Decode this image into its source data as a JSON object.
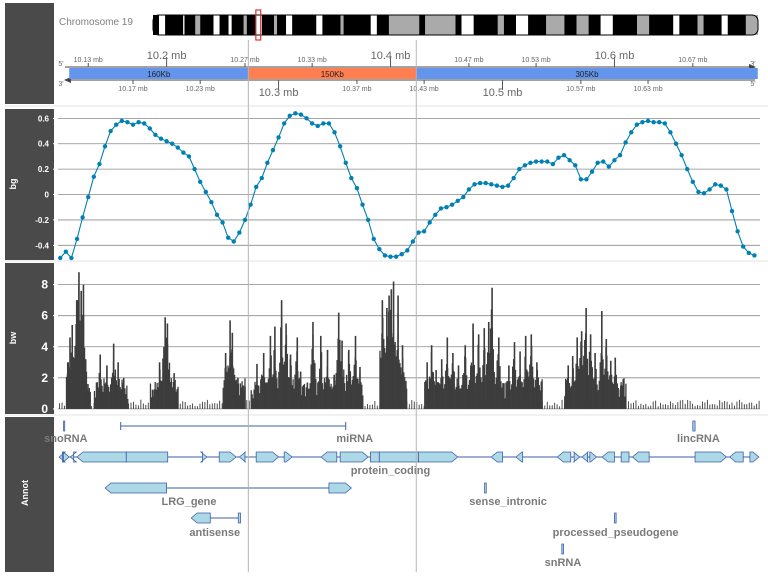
{
  "chromosome": {
    "label": "Chromosome 19",
    "bands": [
      [
        0.0,
        0.01,
        "#000000"
      ],
      [
        0.01,
        0.02,
        "#ffffff"
      ],
      [
        0.02,
        0.05,
        "#000000"
      ],
      [
        0.05,
        0.052,
        "#ffffff"
      ],
      [
        0.052,
        0.07,
        "#000000"
      ],
      [
        0.07,
        0.078,
        "#aaaaaa"
      ],
      [
        0.078,
        0.1,
        "#000000"
      ],
      [
        0.1,
        0.11,
        "#ffffff"
      ],
      [
        0.11,
        0.125,
        "#000000"
      ],
      [
        0.125,
        0.13,
        "#ffffff"
      ],
      [
        0.13,
        0.15,
        "#000000"
      ],
      [
        0.15,
        0.155,
        "#aaaaaa"
      ],
      [
        0.155,
        0.17,
        "#000000"
      ],
      [
        0.17,
        0.18,
        "#ffffff"
      ],
      [
        0.18,
        0.2,
        "#000000"
      ],
      [
        0.2,
        0.205,
        "#aaaaaa"
      ],
      [
        0.205,
        0.22,
        "#000000"
      ],
      [
        0.22,
        0.23,
        "#ffffff"
      ],
      [
        0.23,
        0.27,
        "#000000"
      ],
      [
        0.27,
        0.28,
        "#ffffff"
      ],
      [
        0.28,
        0.31,
        "#000000"
      ],
      [
        0.31,
        0.315,
        "#aaaaaa"
      ],
      [
        0.315,
        0.36,
        "#000000"
      ],
      [
        0.36,
        0.37,
        "#ffffff"
      ],
      [
        0.37,
        0.39,
        "#000000"
      ],
      [
        0.39,
        0.44,
        "#aaaaaa"
      ],
      [
        0.44,
        0.45,
        "#000000"
      ],
      [
        0.45,
        0.5,
        "#aaaaaa"
      ],
      [
        0.5,
        0.51,
        "#000000"
      ],
      [
        0.51,
        0.53,
        "#ffffff"
      ],
      [
        0.53,
        0.57,
        "#000000"
      ],
      [
        0.57,
        0.58,
        "#aaaaaa"
      ],
      [
        0.58,
        0.6,
        "#000000"
      ],
      [
        0.6,
        0.62,
        "#ffffff"
      ],
      [
        0.62,
        0.65,
        "#000000"
      ],
      [
        0.65,
        0.68,
        "#aaaaaa"
      ],
      [
        0.68,
        0.7,
        "#000000"
      ],
      [
        0.7,
        0.72,
        "#aaaaaa"
      ],
      [
        0.72,
        0.74,
        "#000000"
      ],
      [
        0.74,
        0.76,
        "#ffffff"
      ],
      [
        0.76,
        0.8,
        "#000000"
      ],
      [
        0.8,
        0.82,
        "#aaaaaa"
      ],
      [
        0.82,
        0.86,
        "#000000"
      ],
      [
        0.86,
        0.87,
        "#ffffff"
      ],
      [
        0.87,
        0.9,
        "#000000"
      ],
      [
        0.9,
        0.91,
        "#aaaaaa"
      ],
      [
        0.91,
        0.94,
        "#000000"
      ],
      [
        0.94,
        0.95,
        "#ffffff"
      ],
      [
        0.95,
        0.98,
        "#000000"
      ],
      [
        0.98,
        1.0,
        "#aaaaaa"
      ]
    ],
    "highlight": [
      0.17,
      0.178
    ]
  },
  "axis_track": {
    "range_mb": [
      10.103,
      10.73
    ],
    "major_top": [
      {
        "v": 10.2,
        "label": "10.2 mb"
      },
      {
        "v": 10.4,
        "label": "10.4 mb"
      },
      {
        "v": 10.6,
        "label": "10.6 mb"
      }
    ],
    "minor_top": [
      {
        "v": 10.13,
        "label": "10.13 mb"
      },
      {
        "v": 10.27,
        "label": "10.27 mb"
      },
      {
        "v": 10.33,
        "label": "10.33 mb"
      },
      {
        "v": 10.47,
        "label": "10.47 mb"
      },
      {
        "v": 10.53,
        "label": "10.53 mb"
      },
      {
        "v": 10.67,
        "label": "10.67 mb"
      }
    ],
    "major_bottom": [
      {
        "v": 10.3,
        "label": "10.3 mb"
      },
      {
        "v": 10.5,
        "label": "10.5 mb"
      }
    ],
    "minor_bottom": [
      {
        "v": 10.17,
        "label": "10.17 mb"
      },
      {
        "v": 10.23,
        "label": "10.23 mb"
      },
      {
        "v": 10.37,
        "label": "10.37 mb"
      },
      {
        "v": 10.43,
        "label": "10.43 mb"
      },
      {
        "v": 10.57,
        "label": "10.57 mb"
      },
      {
        "v": 10.63,
        "label": "10.63 mb"
      }
    ],
    "strand_top_left": "5'",
    "strand_top_right": "3'",
    "strand_bottom_left": "3'",
    "strand_bottom_right": "5'",
    "ranges": [
      {
        "start": 10.113,
        "end": 10.273,
        "label": "160Kb",
        "color": "#6495ed"
      },
      {
        "start": 10.273,
        "end": 10.423,
        "label": "150Kb",
        "color": "#ff7f50"
      },
      {
        "start": 10.423,
        "end": 10.728,
        "label": "305Kb",
        "color": "#6495ed"
      }
    ]
  },
  "highlight_lines_mb": [
    10.273,
    10.423
  ],
  "tracks": [
    {
      "name": "bg",
      "label": "bg"
    },
    {
      "name": "bw",
      "label": "bw"
    },
    {
      "name": "annot",
      "label": "Annot"
    }
  ],
  "chart_data": [
    {
      "type": "line",
      "track": "bg",
      "xlabel": "",
      "ylabel": "bg",
      "xlim": [
        10.103,
        10.73
      ],
      "ylim": [
        -0.5,
        0.65
      ],
      "yticks": [
        -0.4,
        -0.2,
        0,
        0.2,
        0.4,
        0.6
      ],
      "ytick_labels": [
        "-0.4",
        "-0.2",
        "0",
        "0.2",
        "0.4",
        "0.6"
      ],
      "color": "#0080b3",
      "x": [
        10.105,
        10.11,
        10.115,
        10.12,
        10.125,
        10.13,
        10.135,
        10.14,
        10.145,
        10.15,
        10.155,
        10.16,
        10.165,
        10.17,
        10.175,
        10.18,
        10.185,
        10.19,
        10.195,
        10.2,
        10.205,
        10.21,
        10.215,
        10.22,
        10.225,
        10.23,
        10.235,
        10.24,
        10.245,
        10.25,
        10.255,
        10.26,
        10.265,
        10.27,
        10.275,
        10.28,
        10.285,
        10.29,
        10.295,
        10.3,
        10.305,
        10.31,
        10.315,
        10.32,
        10.325,
        10.33,
        10.335,
        10.34,
        10.345,
        10.35,
        10.355,
        10.36,
        10.365,
        10.37,
        10.375,
        10.38,
        10.385,
        10.39,
        10.395,
        10.4,
        10.405,
        10.41,
        10.415,
        10.42,
        10.425,
        10.43,
        10.435,
        10.44,
        10.445,
        10.45,
        10.455,
        10.46,
        10.465,
        10.47,
        10.475,
        10.48,
        10.485,
        10.49,
        10.495,
        10.5,
        10.505,
        10.51,
        10.515,
        10.52,
        10.525,
        10.53,
        10.535,
        10.54,
        10.545,
        10.55,
        10.555,
        10.56,
        10.565,
        10.57,
        10.575,
        10.58,
        10.585,
        10.59,
        10.595,
        10.6,
        10.605,
        10.61,
        10.615,
        10.62,
        10.625,
        10.63,
        10.635,
        10.64,
        10.645,
        10.65,
        10.655,
        10.66,
        10.665,
        10.67,
        10.675,
        10.68,
        10.685,
        10.69,
        10.695,
        10.7,
        10.705,
        10.71,
        10.715,
        10.72,
        10.725
      ],
      "y": [
        -0.5,
        -0.45,
        -0.5,
        -0.35,
        -0.18,
        -0.02,
        0.14,
        0.24,
        0.38,
        0.5,
        0.55,
        0.58,
        0.57,
        0.55,
        0.57,
        0.56,
        0.52,
        0.47,
        0.44,
        0.42,
        0.4,
        0.37,
        0.33,
        0.3,
        0.2,
        0.1,
        0.02,
        -0.06,
        -0.16,
        -0.22,
        -0.34,
        -0.37,
        -0.3,
        -0.2,
        -0.08,
        0.06,
        0.13,
        0.25,
        0.35,
        0.45,
        0.56,
        0.62,
        0.64,
        0.63,
        0.6,
        0.56,
        0.54,
        0.56,
        0.56,
        0.49,
        0.38,
        0.25,
        0.13,
        0.05,
        -0.08,
        -0.2,
        -0.35,
        -0.43,
        -0.48,
        -0.49,
        -0.49,
        -0.47,
        -0.44,
        -0.37,
        -0.3,
        -0.29,
        -0.22,
        -0.16,
        -0.11,
        -0.1,
        -0.08,
        -0.05,
        -0.02,
        0.04,
        0.08,
        0.09,
        0.09,
        0.08,
        0.07,
        0.06,
        0.07,
        0.13,
        0.2,
        0.23,
        0.25,
        0.26,
        0.26,
        0.26,
        0.24,
        0.29,
        0.31,
        0.27,
        0.23,
        0.12,
        0.12,
        0.18,
        0.25,
        0.26,
        0.22,
        0.27,
        0.31,
        0.41,
        0.49,
        0.55,
        0.57,
        0.58,
        0.57,
        0.57,
        0.56,
        0.49,
        0.4,
        0.31,
        0.2,
        0.1,
        0.02,
        0.01,
        0.04,
        0.08,
        0.07,
        0.04,
        -0.13,
        -0.29,
        -0.41,
        -0.46,
        -0.48
      ]
    },
    {
      "type": "bar",
      "track": "bw",
      "xlabel": "",
      "ylabel": "bw",
      "xlim": [
        10.103,
        10.73
      ],
      "ylim": [
        -0.2,
        9.2
      ],
      "yticks": [
        0,
        2,
        4,
        6,
        8
      ],
      "ytick_labels": [
        "0",
        "2",
        "4",
        "6",
        "8"
      ],
      "color": "#3d3d3d",
      "clusters": [
        {
          "start": 10.11,
          "end": 10.132,
          "peaks": [
            [
              10.111,
              3.0
            ],
            [
              10.113,
              4.6
            ],
            [
              10.115,
              5.4
            ],
            [
              10.117,
              2.8
            ],
            [
              10.119,
              7.0
            ],
            [
              10.121,
              8.8
            ],
            [
              10.123,
              7.6
            ],
            [
              10.125,
              8.0
            ],
            [
              10.127,
              3.2
            ],
            [
              10.129,
              1.6
            ]
          ]
        },
        {
          "start": 10.135,
          "end": 10.165,
          "peaks": [
            [
              10.14,
              3.5
            ],
            [
              10.146,
              2.8
            ],
            [
              10.152,
              4.2
            ],
            [
              10.156,
              3.0
            ],
            [
              10.161,
              2.0
            ]
          ]
        },
        {
          "start": 10.185,
          "end": 10.21,
          "peaks": [
            [
              10.188,
              1.2
            ],
            [
              10.193,
              3.0
            ],
            [
              10.198,
              5.9
            ],
            [
              10.2,
              5.5
            ],
            [
              10.206,
              2.3
            ]
          ]
        },
        {
          "start": 10.27,
          "end": 10.266,
          "peaks": [
            [
              10.268,
              1.5
            ]
          ]
        },
        {
          "start": 10.25,
          "end": 10.27,
          "peaks": [
            [
              10.252,
              3.6
            ],
            [
              10.256,
              5.7
            ],
            [
              10.258,
              4.9
            ],
            [
              10.263,
              2.0
            ]
          ]
        },
        {
          "start": 10.275,
          "end": 10.32,
          "peaks": [
            [
              10.28,
              2.9
            ],
            [
              10.286,
              3.6
            ],
            [
              10.292,
              4.7
            ],
            [
              10.296,
              5.3
            ],
            [
              10.302,
              7.0
            ],
            [
              10.306,
              5.5
            ],
            [
              10.31,
              3.5
            ],
            [
              10.316,
              4.6
            ],
            [
              10.319,
              2.4
            ]
          ]
        },
        {
          "start": 10.32,
          "end": 10.352,
          "peaks": [
            [
              10.325,
              1.7
            ],
            [
              10.33,
              5.6
            ],
            [
              10.337,
              4.7
            ],
            [
              10.343,
              3.8
            ],
            [
              10.349,
              2.2
            ]
          ]
        },
        {
          "start": 10.35,
          "end": 10.375,
          "peaks": [
            [
              10.353,
              6.2
            ],
            [
              10.356,
              4.4
            ],
            [
              10.362,
              3.8
            ],
            [
              10.368,
              4.7
            ],
            [
              10.372,
              2.7
            ]
          ]
        },
        {
          "start": 10.39,
          "end": 10.414,
          "peaks": [
            [
              10.392,
              7.0
            ],
            [
              10.396,
              6.5
            ],
            [
              10.398,
              7.3
            ],
            [
              10.4,
              7.7
            ],
            [
              10.402,
              8.2
            ],
            [
              10.406,
              7.3
            ],
            [
              10.41,
              4.1
            ],
            [
              10.413,
              1.8
            ]
          ]
        },
        {
          "start": 10.43,
          "end": 10.475,
          "peaks": [
            [
              10.432,
              3.0
            ],
            [
              10.436,
              4.1
            ],
            [
              10.44,
              2.5
            ],
            [
              10.445,
              3.2
            ],
            [
              10.45,
              4.6
            ],
            [
              10.455,
              3.6
            ],
            [
              10.46,
              2.8
            ],
            [
              10.466,
              4.1
            ],
            [
              10.471,
              2.8
            ]
          ]
        },
        {
          "start": 10.47,
          "end": 10.5,
          "peaks": [
            [
              10.473,
              5.5
            ],
            [
              10.478,
              4.8
            ],
            [
              10.483,
              5.2
            ],
            [
              10.487,
              5.6
            ],
            [
              10.49,
              7.8
            ],
            [
              10.496,
              4.6
            ]
          ]
        },
        {
          "start": 10.5,
          "end": 10.535,
          "peaks": [
            [
              10.505,
              2.8
            ],
            [
              10.51,
              4.3
            ],
            [
              10.515,
              3.7
            ],
            [
              10.52,
              4.7
            ],
            [
              10.525,
              4.8
            ],
            [
              10.53,
              3.0
            ]
          ]
        },
        {
          "start": 10.555,
          "end": 10.585,
          "peaks": [
            [
              10.558,
              2.8
            ],
            [
              10.562,
              3.4
            ],
            [
              10.566,
              4.6
            ],
            [
              10.57,
              5.0
            ],
            [
              10.574,
              6.5
            ],
            [
              10.578,
              4.8
            ],
            [
              10.582,
              3.6
            ]
          ]
        },
        {
          "start": 10.585,
          "end": 10.61,
          "peaks": [
            [
              10.588,
              6.3
            ],
            [
              10.592,
              4.5
            ],
            [
              10.596,
              3.1
            ],
            [
              10.6,
              3.3
            ],
            [
              10.605,
              1.5
            ]
          ]
        }
      ]
    }
  ],
  "annotation": {
    "color_fill": "#add8e6",
    "color_line": "#3d5fa8",
    "labels": [
      {
        "text": "snoRNA",
        "x": 10.11,
        "row": 1
      },
      {
        "text": "miRNA",
        "x": 10.368,
        "row": 1
      },
      {
        "text": "lincRNA",
        "x": 10.675,
        "row": 1
      },
      {
        "text": "protein_coding",
        "x": 10.4,
        "row": 2
      },
      {
        "text": "LRG_gene",
        "x": 10.22,
        "row": 3
      },
      {
        "text": "sense_intronic",
        "x": 10.505,
        "row": 3
      },
      {
        "text": "antisense",
        "x": 10.243,
        "row": 4
      },
      {
        "text": "processed_pseudogene",
        "x": 10.601,
        "row": 4
      },
      {
        "text": "snRNA",
        "x": 10.554,
        "row": 5
      }
    ]
  }
}
